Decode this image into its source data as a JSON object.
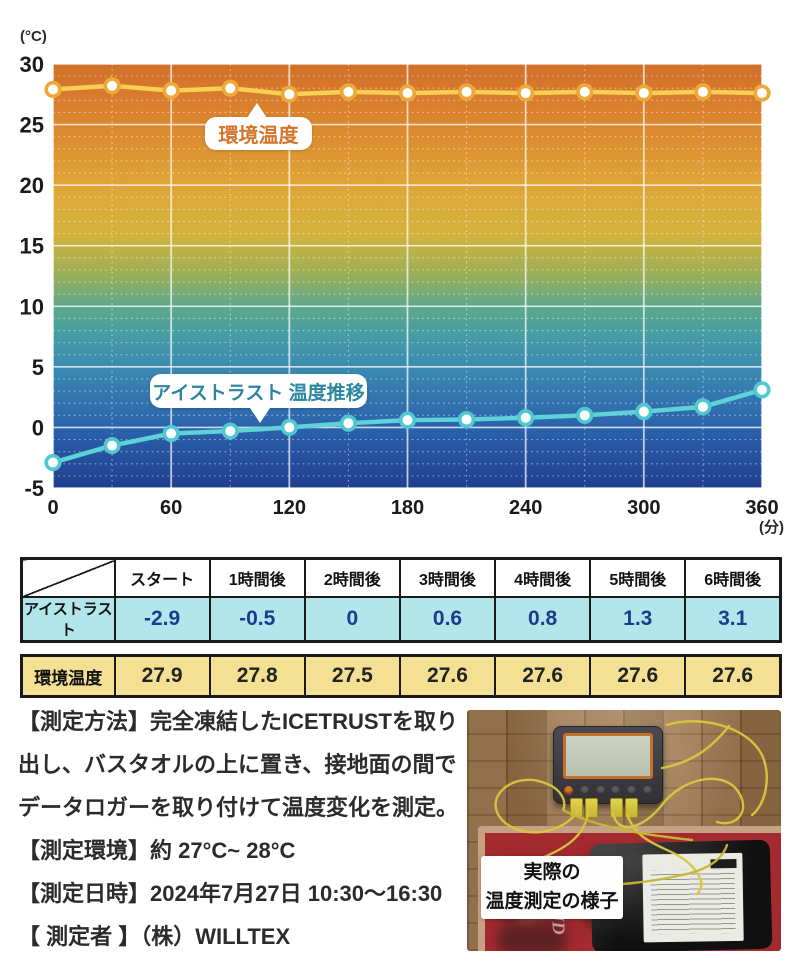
{
  "chart_data": {
    "type": "line",
    "title": "",
    "x_unit": "(分)",
    "y_unit": "(°C)",
    "x": [
      0,
      30,
      60,
      90,
      120,
      150,
      180,
      210,
      240,
      270,
      300,
      330,
      360
    ],
    "xticks": [
      0,
      60,
      120,
      180,
      240,
      300,
      360
    ],
    "yticks": [
      30,
      25,
      20,
      15,
      10,
      5,
      0,
      -5
    ],
    "ylim": [
      -5,
      30
    ],
    "xlim": [
      0,
      360
    ],
    "minor_y_step": 1,
    "minor_x_step": 30,
    "grid": "on",
    "series": [
      {
        "name": "環境温度",
        "values": [
          27.9,
          28.2,
          27.8,
          28.0,
          27.5,
          27.7,
          27.6,
          27.7,
          27.6,
          27.7,
          27.6,
          27.7,
          27.6
        ],
        "line_color": "#f5d054",
        "marker_ring": "#efa93a",
        "marker_fill": "#ffffff"
      },
      {
        "name": "アイストラスト 温度推移",
        "values": [
          -2.9,
          -1.5,
          -0.5,
          -0.3,
          0,
          0.35,
          0.6,
          0.65,
          0.8,
          1.0,
          1.3,
          1.7,
          3.1
        ],
        "line_color": "#5ed2d8",
        "marker_ring": "#4fc8d0",
        "marker_fill": "#ffffff"
      }
    ],
    "gradient_stops": [
      [
        "0%",
        "#d26f2b"
      ],
      [
        "14%",
        "#dc862e"
      ],
      [
        "29%",
        "#dfa637"
      ],
      [
        "40%",
        "#d4b23d"
      ],
      [
        "49%",
        "#9fb054"
      ],
      [
        "57%",
        "#5fa88b"
      ],
      [
        "64%",
        "#479da4"
      ],
      [
        "71%",
        "#3b8bb0"
      ],
      [
        "86%",
        "#2b62ac"
      ],
      [
        "100%",
        "#1f3e8e"
      ]
    ]
  },
  "table": {
    "headers": [
      "スタート",
      "1時間後",
      "2時間後",
      "3時間後",
      "4時間後",
      "5時間後",
      "6時間後"
    ],
    "rows": [
      {
        "label": "アイストラスト",
        "values": [
          "-2.9",
          "-0.5",
          "0",
          "0.6",
          "0.8",
          "1.3",
          "3.1"
        ]
      },
      {
        "label": "環境温度",
        "values": [
          "27.9",
          "27.8",
          "27.5",
          "27.6",
          "27.6",
          "27.6",
          "27.6"
        ]
      }
    ]
  },
  "notes": {
    "lines": [
      "【測定方法】完全凍結したICETRUSTを取り",
      "出し、バスタオルの上に置き、接地面の間で",
      "データロガーを取り付けて温度変化を測定。",
      "【測定環境】約 27°C~ 28°C",
      "【測定日時】2024年7月27日 10:30〜16:30",
      "【 測定者 】（株）WILLTEX"
    ]
  },
  "photo": {
    "caption_lines": [
      "実際の",
      "温度測定の様子"
    ]
  },
  "colors": {
    "ice_row_bg": "#b2e6ea",
    "ice_value_text": "#1b3c8e",
    "ambient_row_bg": "#f3e092",
    "ambient_label_text": "#d3752c",
    "ice_label_text": "#2c86a0",
    "grid_line": "#ffffff"
  }
}
